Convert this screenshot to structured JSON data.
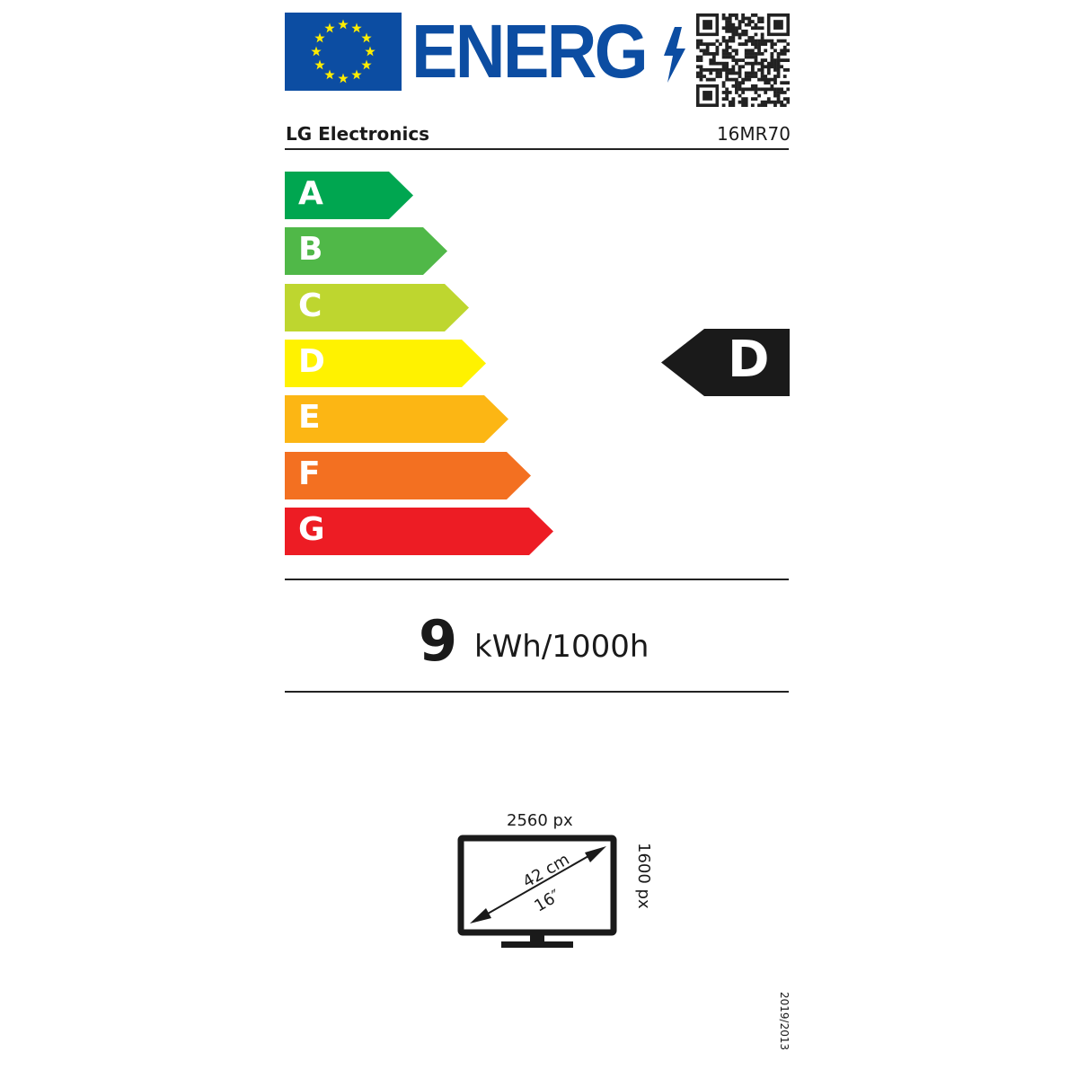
{
  "header": {
    "logo_text": "ENERG",
    "supplier": "LG Electronics",
    "model": "16MR70"
  },
  "scale": {
    "classes": [
      {
        "letter": "A",
        "color": "#00a650"
      },
      {
        "letter": "B",
        "color": "#50b848"
      },
      {
        "letter": "C",
        "color": "#bed62f"
      },
      {
        "letter": "D",
        "color": "#fff200"
      },
      {
        "letter": "E",
        "color": "#fcb614"
      },
      {
        "letter": "F",
        "color": "#f37021"
      },
      {
        "letter": "G",
        "color": "#ed1c24"
      }
    ],
    "rated_class": "D"
  },
  "consumption": {
    "value": "9",
    "unit": "kWh/1000h"
  },
  "screen": {
    "horizontal_resolution": "2560 px",
    "vertical_resolution": "1600 px",
    "diagonal_cm": "42 cm",
    "diagonal_inch": "16″"
  },
  "regulation": "2019/2013",
  "colors": {
    "eu_blue": "#0c4da2",
    "eu_yellow": "#ffed00"
  }
}
